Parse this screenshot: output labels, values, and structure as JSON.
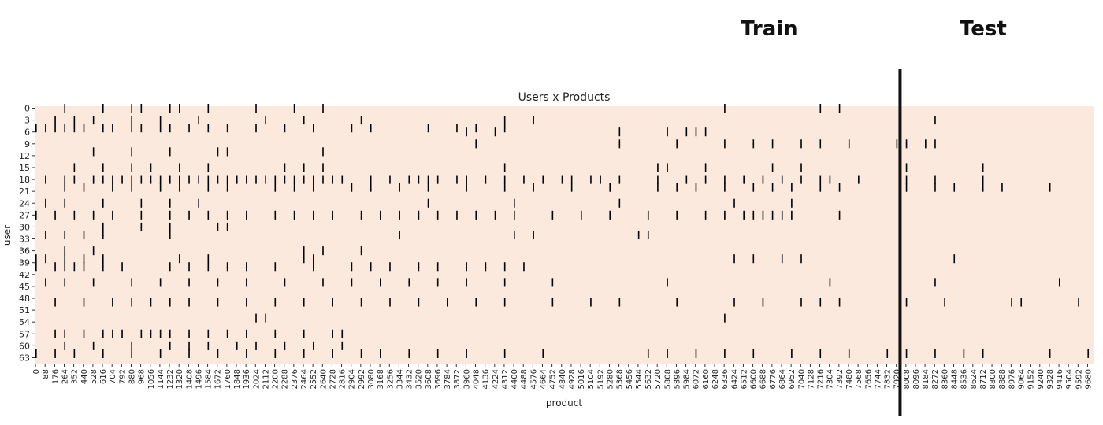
{
  "overlay": {
    "train_label": "Train",
    "test_label": "Test"
  },
  "colors": {
    "background": "#fbe9dd",
    "cell": "#000000",
    "split_line": "#111111"
  },
  "chart_data": {
    "type": "heatmap",
    "title": "Users x Products",
    "xlabel": "product",
    "ylabel": "user",
    "n_users": 65,
    "n_products": 9735,
    "split_product": 7955,
    "y_ticks": [
      0,
      3,
      6,
      9,
      12,
      15,
      18,
      21,
      24,
      27,
      30,
      33,
      36,
      39,
      42,
      45,
      48,
      51,
      54,
      57,
      60,
      63
    ],
    "x_ticks": [
      0,
      88,
      176,
      264,
      352,
      440,
      528,
      616,
      704,
      792,
      880,
      968,
      1056,
      1144,
      1232,
      1320,
      1408,
      1496,
      1584,
      1672,
      1760,
      1848,
      1936,
      2024,
      2112,
      2200,
      2288,
      2376,
      2464,
      2552,
      2640,
      2728,
      2816,
      2904,
      2992,
      3080,
      3168,
      3256,
      3344,
      3432,
      3520,
      3608,
      3696,
      3784,
      3872,
      3960,
      4048,
      4136,
      4224,
      4312,
      4400,
      4488,
      4576,
      4664,
      4752,
      4840,
      4928,
      5016,
      5104,
      5192,
      5280,
      5368,
      5456,
      5544,
      5632,
      5720,
      5808,
      5896,
      5984,
      6072,
      6160,
      6248,
      6336,
      6424,
      6512,
      6600,
      6688,
      6776,
      6864,
      6952,
      7040,
      7128,
      7216,
      7304,
      7392,
      7480,
      7568,
      7656,
      7744,
      7832,
      7920,
      8008,
      8096,
      8184,
      8272,
      8360,
      8448,
      8536,
      8624,
      8712,
      8800,
      8888,
      8976,
      9064,
      9152,
      9240,
      9328,
      9416,
      9504,
      9592,
      9680
    ],
    "interactions": [
      [
        0,
        264
      ],
      [
        0,
        616
      ],
      [
        0,
        880
      ],
      [
        0,
        968
      ],
      [
        0,
        1232
      ],
      [
        0,
        1320
      ],
      [
        0,
        1584
      ],
      [
        0,
        2024
      ],
      [
        0,
        2376
      ],
      [
        0,
        2640
      ],
      [
        0,
        6336
      ],
      [
        0,
        7216
      ],
      [
        0,
        7392
      ],
      [
        3,
        176
      ],
      [
        3,
        352
      ],
      [
        3,
        528
      ],
      [
        3,
        880
      ],
      [
        3,
        1144
      ],
      [
        3,
        1496
      ],
      [
        3,
        2112
      ],
      [
        3,
        2464
      ],
      [
        3,
        2992
      ],
      [
        3,
        4312
      ],
      [
        3,
        4576
      ],
      [
        3,
        8272
      ],
      [
        5,
        0
      ],
      [
        5,
        88
      ],
      [
        5,
        176
      ],
      [
        5,
        264
      ],
      [
        5,
        352
      ],
      [
        5,
        440
      ],
      [
        5,
        616
      ],
      [
        5,
        704
      ],
      [
        5,
        880
      ],
      [
        5,
        968
      ],
      [
        5,
        1144
      ],
      [
        5,
        1232
      ],
      [
        5,
        1408
      ],
      [
        5,
        1584
      ],
      [
        5,
        1760
      ],
      [
        5,
        2024
      ],
      [
        5,
        2288
      ],
      [
        5,
        2552
      ],
      [
        5,
        2904
      ],
      [
        5,
        3080
      ],
      [
        5,
        3608
      ],
      [
        5,
        3872
      ],
      [
        5,
        4048
      ],
      [
        5,
        4312
      ],
      [
        6,
        3960
      ],
      [
        6,
        4224
      ],
      [
        6,
        5368
      ],
      [
        6,
        5808
      ],
      [
        6,
        5984
      ],
      [
        6,
        6072
      ],
      [
        6,
        6160
      ],
      [
        9,
        4048
      ],
      [
        9,
        5368
      ],
      [
        9,
        5896
      ],
      [
        9,
        6336
      ],
      [
        9,
        6600
      ],
      [
        9,
        6776
      ],
      [
        9,
        7040
      ],
      [
        9,
        7216
      ],
      [
        9,
        7480
      ],
      [
        9,
        7920
      ],
      [
        9,
        8008
      ],
      [
        9,
        8184
      ],
      [
        9,
        8272
      ],
      [
        11,
        528
      ],
      [
        11,
        880
      ],
      [
        11,
        1232
      ],
      [
        11,
        1672
      ],
      [
        11,
        1760
      ],
      [
        11,
        2640
      ],
      [
        15,
        352
      ],
      [
        15,
        616
      ],
      [
        15,
        880
      ],
      [
        15,
        1056
      ],
      [
        15,
        1320
      ],
      [
        15,
        1584
      ],
      [
        15,
        2288
      ],
      [
        15,
        2464
      ],
      [
        15,
        2640
      ],
      [
        15,
        4312
      ],
      [
        15,
        5720
      ],
      [
        15,
        5808
      ],
      [
        15,
        6160
      ],
      [
        15,
        6776
      ],
      [
        15,
        7040
      ],
      [
        15,
        8008
      ],
      [
        15,
        8712
      ],
      [
        18,
        88
      ],
      [
        18,
        264
      ],
      [
        18,
        352
      ],
      [
        18,
        528
      ],
      [
        18,
        616
      ],
      [
        18,
        704
      ],
      [
        18,
        792
      ],
      [
        18,
        880
      ],
      [
        18,
        968
      ],
      [
        18,
        1056
      ],
      [
        18,
        1144
      ],
      [
        18,
        1232
      ],
      [
        18,
        1320
      ],
      [
        18,
        1408
      ],
      [
        18,
        1496
      ],
      [
        18,
        1584
      ],
      [
        18,
        1672
      ],
      [
        18,
        1760
      ],
      [
        18,
        1848
      ],
      [
        18,
        1936
      ],
      [
        18,
        2024
      ],
      [
        18,
        2112
      ],
      [
        18,
        2200
      ],
      [
        18,
        2288
      ],
      [
        18,
        2376
      ],
      [
        18,
        2464
      ],
      [
        18,
        2552
      ],
      [
        18,
        2640
      ],
      [
        18,
        2728
      ],
      [
        18,
        2816
      ],
      [
        18,
        3080
      ],
      [
        18,
        3256
      ],
      [
        18,
        3432
      ],
      [
        18,
        3520
      ],
      [
        18,
        3608
      ],
      [
        18,
        3696
      ],
      [
        18,
        3872
      ],
      [
        18,
        3960
      ],
      [
        18,
        4136
      ],
      [
        18,
        4312
      ],
      [
        18,
        4488
      ],
      [
        18,
        4664
      ],
      [
        18,
        4840
      ],
      [
        18,
        4928
      ],
      [
        18,
        5104
      ],
      [
        18,
        5192
      ],
      [
        18,
        5368
      ],
      [
        18,
        5720
      ],
      [
        18,
        5984
      ],
      [
        18,
        6160
      ],
      [
        18,
        6336
      ],
      [
        18,
        6512
      ],
      [
        18,
        6688
      ],
      [
        18,
        6864
      ],
      [
        18,
        7040
      ],
      [
        18,
        7216
      ],
      [
        18,
        7304
      ],
      [
        18,
        7568
      ],
      [
        18,
        8008
      ],
      [
        18,
        8272
      ],
      [
        18,
        8712
      ],
      [
        20,
        264
      ],
      [
        20,
        440
      ],
      [
        20,
        704
      ],
      [
        20,
        880
      ],
      [
        20,
        1144
      ],
      [
        20,
        1320
      ],
      [
        20,
        1584
      ],
      [
        20,
        1760
      ],
      [
        20,
        2200
      ],
      [
        20,
        2376
      ],
      [
        20,
        2552
      ],
      [
        20,
        2904
      ],
      [
        20,
        3080
      ],
      [
        20,
        3344
      ],
      [
        20,
        3608
      ],
      [
        20,
        3960
      ],
      [
        20,
        4312
      ],
      [
        20,
        4576
      ],
      [
        20,
        4928
      ],
      [
        20,
        5280
      ],
      [
        20,
        5720
      ],
      [
        20,
        5896
      ],
      [
        20,
        6072
      ],
      [
        20,
        6336
      ],
      [
        20,
        6600
      ],
      [
        20,
        6776
      ],
      [
        20,
        6952
      ],
      [
        20,
        7216
      ],
      [
        20,
        7392
      ],
      [
        20,
        8008
      ],
      [
        20,
        8272
      ],
      [
        20,
        8448
      ],
      [
        20,
        8712
      ],
      [
        20,
        8888
      ],
      [
        20,
        9328
      ],
      [
        24,
        88
      ],
      [
        24,
        264
      ],
      [
        24,
        616
      ],
      [
        24,
        968
      ],
      [
        24,
        1232
      ],
      [
        24,
        1496
      ],
      [
        24,
        3608
      ],
      [
        24,
        4400
      ],
      [
        24,
        5368
      ],
      [
        24,
        6424
      ],
      [
        24,
        6952
      ],
      [
        27,
        0
      ],
      [
        27,
        176
      ],
      [
        27,
        352
      ],
      [
        27,
        528
      ],
      [
        27,
        704
      ],
      [
        27,
        968
      ],
      [
        27,
        1232
      ],
      [
        27,
        1408
      ],
      [
        27,
        1584
      ],
      [
        27,
        1760
      ],
      [
        27,
        1936
      ],
      [
        27,
        2200
      ],
      [
        27,
        2376
      ],
      [
        27,
        2552
      ],
      [
        27,
        2728
      ],
      [
        27,
        2992
      ],
      [
        27,
        3168
      ],
      [
        27,
        3344
      ],
      [
        27,
        3520
      ],
      [
        27,
        3696
      ],
      [
        27,
        3872
      ],
      [
        27,
        4048
      ],
      [
        27,
        4224
      ],
      [
        27,
        4400
      ],
      [
        27,
        4752
      ],
      [
        27,
        5016
      ],
      [
        27,
        5280
      ],
      [
        27,
        5632
      ],
      [
        27,
        5896
      ],
      [
        27,
        6160
      ],
      [
        27,
        6336
      ],
      [
        27,
        6512
      ],
      [
        27,
        6600
      ],
      [
        27,
        6688
      ],
      [
        27,
        6776
      ],
      [
        27,
        6864
      ],
      [
        27,
        6952
      ],
      [
        27,
        7392
      ],
      [
        30,
        616
      ],
      [
        30,
        968
      ],
      [
        30,
        1232
      ],
      [
        30,
        1672
      ],
      [
        30,
        1760
      ],
      [
        32,
        88
      ],
      [
        32,
        264
      ],
      [
        32,
        440
      ],
      [
        32,
        616
      ],
      [
        32,
        1232
      ],
      [
        32,
        3344
      ],
      [
        32,
        4400
      ],
      [
        32,
        4576
      ],
      [
        32,
        5544
      ],
      [
        32,
        5632
      ],
      [
        36,
        264
      ],
      [
        36,
        528
      ],
      [
        36,
        2464
      ],
      [
        36,
        2640
      ],
      [
        36,
        2992
      ],
      [
        38,
        0
      ],
      [
        38,
        88
      ],
      [
        38,
        264
      ],
      [
        38,
        440
      ],
      [
        38,
        616
      ],
      [
        38,
        1320
      ],
      [
        38,
        1584
      ],
      [
        38,
        2464
      ],
      [
        38,
        2552
      ],
      [
        38,
        6424
      ],
      [
        38,
        6600
      ],
      [
        38,
        6864
      ],
      [
        38,
        7040
      ],
      [
        38,
        8448
      ],
      [
        40,
        0
      ],
      [
        40,
        176
      ],
      [
        40,
        264
      ],
      [
        40,
        352
      ],
      [
        40,
        440
      ],
      [
        40,
        616
      ],
      [
        40,
        792
      ],
      [
        40,
        1232
      ],
      [
        40,
        1408
      ],
      [
        40,
        1584
      ],
      [
        40,
        1760
      ],
      [
        40,
        1936
      ],
      [
        40,
        2200
      ],
      [
        40,
        2552
      ],
      [
        40,
        2904
      ],
      [
        40,
        3080
      ],
      [
        40,
        3256
      ],
      [
        40,
        3520
      ],
      [
        40,
        3696
      ],
      [
        40,
        3960
      ],
      [
        40,
        4136
      ],
      [
        40,
        4312
      ],
      [
        40,
        4488
      ],
      [
        44,
        88
      ],
      [
        44,
        264
      ],
      [
        44,
        528
      ],
      [
        44,
        880
      ],
      [
        44,
        1144
      ],
      [
        44,
        1408
      ],
      [
        44,
        1672
      ],
      [
        44,
        1936
      ],
      [
        44,
        2288
      ],
      [
        44,
        2640
      ],
      [
        44,
        2904
      ],
      [
        44,
        3168
      ],
      [
        44,
        3432
      ],
      [
        44,
        3696
      ],
      [
        44,
        3960
      ],
      [
        44,
        4312
      ],
      [
        44,
        4752
      ],
      [
        44,
        5808
      ],
      [
        44,
        7304
      ],
      [
        44,
        8272
      ],
      [
        44,
        9416
      ],
      [
        49,
        176
      ],
      [
        49,
        440
      ],
      [
        49,
        704
      ],
      [
        49,
        880
      ],
      [
        49,
        1056
      ],
      [
        49,
        1232
      ],
      [
        49,
        1408
      ],
      [
        49,
        1672
      ],
      [
        49,
        1936
      ],
      [
        49,
        2200
      ],
      [
        49,
        2464
      ],
      [
        49,
        2728
      ],
      [
        49,
        2992
      ],
      [
        49,
        3256
      ],
      [
        49,
        3520
      ],
      [
        49,
        3784
      ],
      [
        49,
        4048
      ],
      [
        49,
        4312
      ],
      [
        49,
        4752
      ],
      [
        49,
        5104
      ],
      [
        49,
        5368
      ],
      [
        49,
        5896
      ],
      [
        49,
        6424
      ],
      [
        49,
        6688
      ],
      [
        49,
        7040
      ],
      [
        49,
        7216
      ],
      [
        49,
        7392
      ],
      [
        49,
        8008
      ],
      [
        49,
        8360
      ],
      [
        49,
        8976
      ],
      [
        49,
        9064
      ],
      [
        49,
        9592
      ],
      [
        53,
        2024
      ],
      [
        53,
        2112
      ],
      [
        53,
        6336
      ],
      [
        57,
        176
      ],
      [
        57,
        264
      ],
      [
        57,
        440
      ],
      [
        57,
        616
      ],
      [
        57,
        704
      ],
      [
        57,
        792
      ],
      [
        57,
        968
      ],
      [
        57,
        1056
      ],
      [
        57,
        1144
      ],
      [
        57,
        1232
      ],
      [
        57,
        1408
      ],
      [
        57,
        1584
      ],
      [
        57,
        1760
      ],
      [
        57,
        1936
      ],
      [
        57,
        2200
      ],
      [
        57,
        2464
      ],
      [
        57,
        2728
      ],
      [
        57,
        2816
      ],
      [
        60,
        264
      ],
      [
        60,
        528
      ],
      [
        60,
        880
      ],
      [
        60,
        1232
      ],
      [
        60,
        1408
      ],
      [
        60,
        1584
      ],
      [
        60,
        1848
      ],
      [
        60,
        2024
      ],
      [
        60,
        2288
      ],
      [
        60,
        2552
      ],
      [
        60,
        2816
      ],
      [
        62,
        0
      ],
      [
        62,
        176
      ],
      [
        62,
        352
      ],
      [
        62,
        616
      ],
      [
        62,
        880
      ],
      [
        62,
        1144
      ],
      [
        62,
        1408
      ],
      [
        62,
        1672
      ],
      [
        62,
        1936
      ],
      [
        62,
        2200
      ],
      [
        62,
        2464
      ],
      [
        62,
        2728
      ],
      [
        62,
        2992
      ],
      [
        62,
        3168
      ],
      [
        62,
        3432
      ],
      [
        62,
        3696
      ],
      [
        62,
        3960
      ],
      [
        62,
        4312
      ],
      [
        62,
        4664
      ],
      [
        62,
        5632
      ],
      [
        62,
        5808
      ],
      [
        62,
        6072
      ],
      [
        62,
        6336
      ],
      [
        62,
        6600
      ],
      [
        62,
        6952
      ],
      [
        62,
        7216
      ],
      [
        62,
        7480
      ],
      [
        62,
        7832
      ],
      [
        62,
        8008
      ],
      [
        62,
        8272
      ],
      [
        62,
        8536
      ],
      [
        62,
        8712
      ],
      [
        62,
        9328
      ],
      [
        62,
        9680
      ]
    ]
  }
}
